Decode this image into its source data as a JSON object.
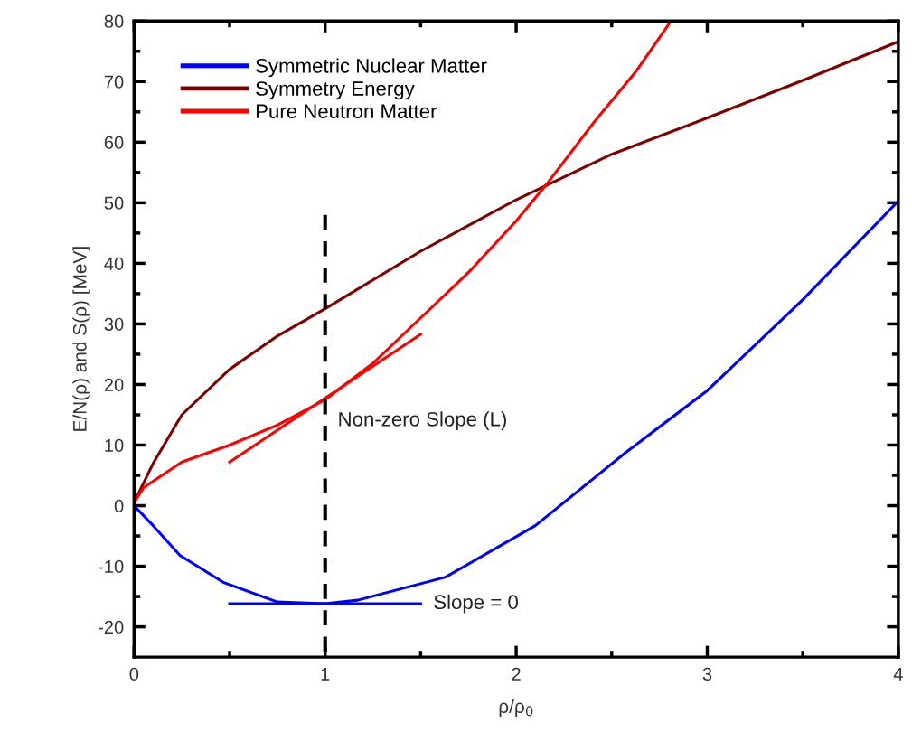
{
  "chart_data": {
    "type": "line",
    "xlabel": "ρ/ρ$_{0}$",
    "ylabel": "E/N(ρ) and S(ρ) [MeV]",
    "xlim": [
      0,
      4
    ],
    "ylim": [
      -25,
      80
    ],
    "xticks": [
      0,
      {
        "value": 0.5,
        "label": null
      },
      1,
      {
        "value": 1.5,
        "label": null
      },
      2,
      {
        "value": 2.5,
        "label": null
      },
      3,
      {
        "value": 3.5,
        "label": null
      },
      4
    ],
    "yticks": [
      -20,
      {
        "value": -15,
        "label": null
      },
      -10,
      {
        "value": -5,
        "label": null
      },
      0,
      {
        "value": 5,
        "label": null
      },
      10,
      {
        "value": 15,
        "label": null
      },
      20,
      {
        "value": 25,
        "label": null
      },
      30,
      {
        "value": 35,
        "label": null
      },
      40,
      {
        "value": 45,
        "label": null
      },
      50,
      {
        "value": 55,
        "label": null
      },
      60,
      {
        "value": 65,
        "label": null
      },
      70,
      {
        "value": 75,
        "label": null
      },
      80
    ],
    "grid": false,
    "legend": "top left",
    "series": [
      {
        "name": "Symmetric Nuclear Matter",
        "color": "#0000ff",
        "line_style": "solid",
        "x": [
          0,
          0.1,
          0.24,
          0.47,
          0.75,
          1,
          1.17,
          1.63,
          2.1,
          2.57,
          3,
          3.5,
          4
        ],
        "values": [
          0,
          -3.3,
          -8.2,
          -12.7,
          -15.9,
          -16.2,
          -15.6,
          -11.8,
          -3.3,
          8.7,
          19,
          34,
          50.3
        ]
      },
      {
        "name": "Symmetry Energy",
        "color": "#800000",
        "line_style": "solid",
        "x": [
          0,
          0.1,
          0.25,
          0.5,
          0.75,
          1,
          1.5,
          2,
          2.5,
          3,
          3.5,
          4
        ],
        "values": [
          0.5,
          7,
          15,
          22.5,
          28,
          32.5,
          42,
          50.5,
          58,
          64,
          70.2,
          76.6
        ]
      },
      {
        "name": "Pure Neutron Matter",
        "color": "#ff0000",
        "line_style": "solid",
        "x": [
          0,
          0.05,
          0.25,
          0.5,
          0.75,
          1,
          1.25,
          1.5,
          1.75,
          2,
          2.17,
          2.41,
          2.63,
          2.81
        ],
        "values": [
          0.5,
          3,
          7.2,
          10,
          13.3,
          17.5,
          23.5,
          31,
          38.5,
          47,
          53.5,
          63.4,
          71.8,
          80
        ]
      },
      {
        "color": "#ff0000",
        "line_style": "solid",
        "x": [
          0.5,
          1.5
        ],
        "values": [
          7.2,
          28.3
        ]
      },
      {
        "color": "#0000ff",
        "line_style": "solid",
        "x": [
          0.5,
          1.5
        ],
        "values": [
          -16.2,
          -16.2
        ]
      },
      {
        "color": "#000000",
        "line_style": "dashed",
        "x": [
          1,
          1
        ],
        "values": [
          48,
          -25
        ]
      }
    ],
    "annotations": [
      {
        "text": "Non-zero Slope (L)",
        "x": 1,
        "y": 14
      },
      {
        "text": "Slope = 0",
        "x": 1.5,
        "y": -16.2
      }
    ]
  }
}
